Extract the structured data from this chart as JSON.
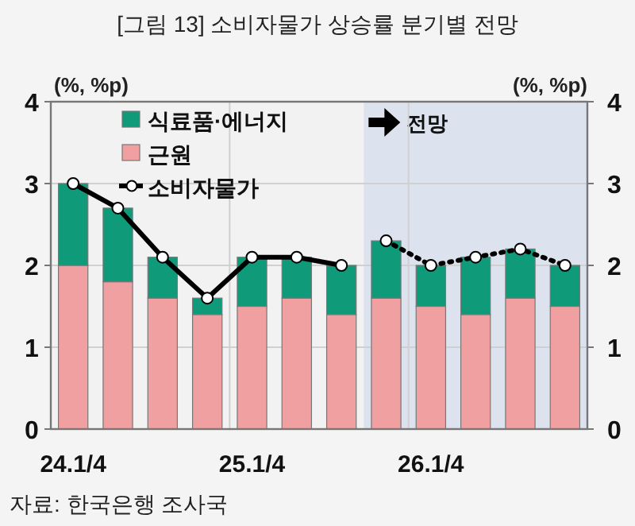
{
  "chart_data": {
    "type": "bar",
    "title": "[그림 13] 소비자물가 상승률 분기별 전망",
    "ylabel": "(%, %p)",
    "y2label": "(%, %p)",
    "categories": [
      "24.1/4",
      null,
      null,
      null,
      "25.1/4",
      null,
      null,
      null,
      "26.1/4",
      null,
      null,
      null
    ],
    "stacked": true,
    "series": [
      {
        "name": "근원",
        "color": "#f0a0a0",
        "values": [
          2.0,
          1.8,
          1.6,
          1.4,
          1.5,
          1.6,
          1.4,
          1.6,
          1.5,
          1.4,
          1.6,
          1.5
        ]
      },
      {
        "name": "식료품·에너지",
        "color": "#0f9a7a",
        "values": [
          1.0,
          0.9,
          0.5,
          0.2,
          0.6,
          0.5,
          0.6,
          0.7,
          0.5,
          0.7,
          0.6,
          0.5
        ]
      },
      {
        "name": "소비자물가",
        "type": "line",
        "color": "#000000",
        "marker": "circle",
        "line_style": "solid",
        "values": [
          3.0,
          2.7,
          2.1,
          1.6,
          2.1,
          2.1,
          2.0,
          null,
          null,
          null,
          null,
          null
        ]
      },
      {
        "type": "line",
        "color": "#000000",
        "marker": "circle",
        "line_style": "dotted",
        "values": [
          null,
          null,
          null,
          null,
          null,
          null,
          null,
          2.3,
          2.0,
          2.1,
          2.2,
          2.0
        ]
      }
    ],
    "ylim": [
      0,
      4
    ],
    "yticks": [
      0,
      1,
      2,
      3,
      4
    ],
    "y2lim": [
      0,
      4
    ],
    "y2ticks": [
      0,
      1,
      2,
      3,
      4
    ],
    "grid": true,
    "legend": "top left",
    "annotations": [
      "전망",
      "자료: 한국은행 조사국"
    ]
  }
}
